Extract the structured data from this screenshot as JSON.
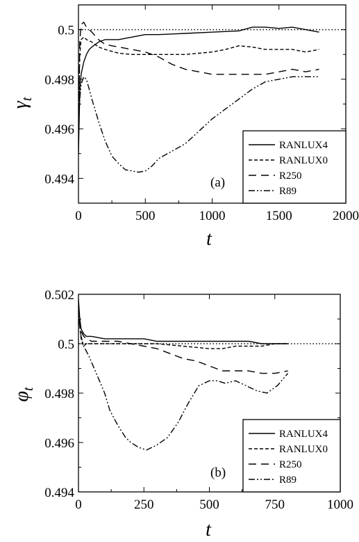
{
  "chart_data": [
    {
      "type": "line",
      "panel_label": "(a)",
      "xlabel": "t",
      "ylabel": "γt",
      "ylabel_main": "γ",
      "ylabel_sub": "t",
      "xlim": [
        0,
        2000
      ],
      "ylim": [
        0.493,
        0.501
      ],
      "xticks": [
        0,
        500,
        1000,
        1500,
        2000
      ],
      "xtick_labels": [
        "0",
        "500",
        "1000",
        "1500",
        "2000"
      ],
      "yticks": [
        0.494,
        0.496,
        0.498,
        0.5
      ],
      "ytick_labels": [
        "0.494",
        "0.496",
        "0.498",
        "0.5"
      ],
      "reference_line": {
        "y": 0.5,
        "style": "dotted"
      },
      "legend_position": "bottom-right",
      "series": [
        {
          "name": "RANLUX4",
          "dash": "solid",
          "x": [
            0,
            10,
            20,
            40,
            60,
            80,
            100,
            150,
            200,
            300,
            400,
            500,
            600,
            800,
            1000,
            1200,
            1300,
            1400,
            1500,
            1600,
            1700,
            1800
          ],
          "y": [
            0.495,
            0.4975,
            0.4982,
            0.4987,
            0.499,
            0.4992,
            0.4993,
            0.4995,
            0.4996,
            0.4996,
            0.4997,
            0.4998,
            0.4998,
            0.49985,
            0.4999,
            0.49995,
            0.5001,
            0.5001,
            0.50005,
            0.5001,
            0.5,
            0.4999
          ]
        },
        {
          "name": "RANLUX0",
          "dash": "short-dash",
          "x": [
            0,
            10,
            20,
            40,
            60,
            100,
            150,
            200,
            300,
            400,
            500,
            600,
            700,
            800,
            900,
            1000,
            1100,
            1200,
            1300,
            1400,
            1500,
            1600,
            1700,
            1800
          ],
          "y": [
            0.496,
            0.499,
            0.4996,
            0.4997,
            0.4996,
            0.4995,
            0.4993,
            0.4992,
            0.49905,
            0.499,
            0.499,
            0.499,
            0.499,
            0.499,
            0.49905,
            0.4991,
            0.4992,
            0.49935,
            0.4993,
            0.4992,
            0.4992,
            0.4992,
            0.4991,
            0.4992
          ]
        },
        {
          "name": "R250",
          "dash": "long-dash",
          "x": [
            0,
            10,
            20,
            40,
            60,
            100,
            150,
            200,
            300,
            400,
            500,
            600,
            700,
            800,
            900,
            1000,
            1100,
            1200,
            1300,
            1400,
            1500,
            1600,
            1700,
            1800
          ],
          "y": [
            0.4962,
            0.4995,
            0.5002,
            0.5003,
            0.5001,
            0.4999,
            0.4996,
            0.4994,
            0.4993,
            0.4992,
            0.4991,
            0.4989,
            0.4986,
            0.4984,
            0.4983,
            0.4982,
            0.4982,
            0.4982,
            0.4982,
            0.4982,
            0.4983,
            0.4984,
            0.4983,
            0.4984
          ]
        },
        {
          "name": "R89",
          "dash": "dash-dot-dot",
          "x": [
            0,
            10,
            20,
            40,
            60,
            80,
            100,
            150,
            200,
            250,
            300,
            350,
            400,
            450,
            500,
            550,
            600,
            700,
            800,
            900,
            1000,
            1100,
            1200,
            1300,
            1400,
            1500,
            1600,
            1700,
            1800
          ],
          "y": [
            0.496,
            0.4972,
            0.4978,
            0.4981,
            0.498,
            0.4976,
            0.4972,
            0.4963,
            0.4955,
            0.4949,
            0.4946,
            0.49435,
            0.4943,
            0.49425,
            0.4943,
            0.4945,
            0.4948,
            0.4951,
            0.4954,
            0.4959,
            0.4964,
            0.4968,
            0.4972,
            0.4976,
            0.4979,
            0.498,
            0.4981,
            0.4981,
            0.4981
          ]
        }
      ]
    },
    {
      "type": "line",
      "panel_label": "(b)",
      "xlabel": "t",
      "ylabel": "φt",
      "ylabel_main": "φ",
      "ylabel_sub": "t",
      "xlim": [
        0,
        1000
      ],
      "ylim": [
        0.494,
        0.502
      ],
      "xticks": [
        0,
        250,
        500,
        750,
        1000
      ],
      "xtick_labels": [
        "0",
        "250",
        "500",
        "750",
        "1000"
      ],
      "yticks": [
        0.494,
        0.496,
        0.498,
        0.5,
        0.502
      ],
      "ytick_labels": [
        "0.494",
        "0.496",
        "0.498",
        "0.5",
        "0.502"
      ],
      "reference_line": {
        "y": 0.5,
        "style": "dotted"
      },
      "legend_position": "bottom-right",
      "series": [
        {
          "name": "RANLUX4",
          "dash": "solid",
          "x": [
            0,
            5,
            10,
            20,
            30,
            50,
            100,
            150,
            200,
            250,
            300,
            350,
            400,
            450,
            500,
            550,
            600,
            650,
            700,
            750,
            800
          ],
          "y": [
            0.5018,
            0.501,
            0.5006,
            0.5004,
            0.5003,
            0.5003,
            0.5002,
            0.5002,
            0.5002,
            0.5002,
            0.5001,
            0.5001,
            0.5001,
            0.5001,
            0.5001,
            0.5001,
            0.5001,
            0.5001,
            0.5,
            0.5,
            0.5
          ]
        },
        {
          "name": "RANLUX0",
          "dash": "short-dash",
          "x": [
            0,
            10,
            20,
            30,
            50,
            100,
            150,
            200,
            300,
            400,
            500,
            550,
            600,
            650,
            700,
            750,
            800
          ],
          "y": [
            0.5012,
            0.5002,
            0.4999,
            0.5,
            0.5,
            0.5,
            0.5,
            0.5,
            0.5,
            0.4999,
            0.4998,
            0.4998,
            0.4999,
            0.4999,
            0.4999,
            0.5,
            0.5
          ]
        },
        {
          "name": "R250",
          "dash": "long-dash",
          "x": [
            0,
            5,
            10,
            20,
            30,
            50,
            100,
            150,
            200,
            250,
            300,
            350,
            400,
            450,
            500,
            550,
            600,
            650,
            700,
            750,
            800
          ],
          "y": [
            0.5015,
            0.501,
            0.5005,
            0.5003,
            0.5002,
            0.5001,
            0.5001,
            0.5001,
            0.5,
            0.4999,
            0.4998,
            0.4996,
            0.4994,
            0.4993,
            0.4991,
            0.4989,
            0.4989,
            0.4989,
            0.4988,
            0.4988,
            0.4989
          ]
        },
        {
          "name": "R89",
          "dash": "dash-dot-dot",
          "x": [
            0,
            10,
            20,
            40,
            60,
            80,
            100,
            120,
            150,
            180,
            200,
            230,
            260,
            280,
            300,
            340,
            380,
            420,
            460,
            500,
            530,
            560,
            600,
            640,
            680,
            720,
            760,
            800
          ],
          "y": [
            0.501,
            0.5003,
            0.4999,
            0.4995,
            0.499,
            0.4985,
            0.498,
            0.4973,
            0.4967,
            0.4962,
            0.496,
            0.4958,
            0.4957,
            0.4958,
            0.4959,
            0.4962,
            0.4968,
            0.4976,
            0.4983,
            0.4985,
            0.4985,
            0.4984,
            0.4985,
            0.4983,
            0.4981,
            0.498,
            0.4983,
            0.4988
          ]
        }
      ]
    }
  ]
}
